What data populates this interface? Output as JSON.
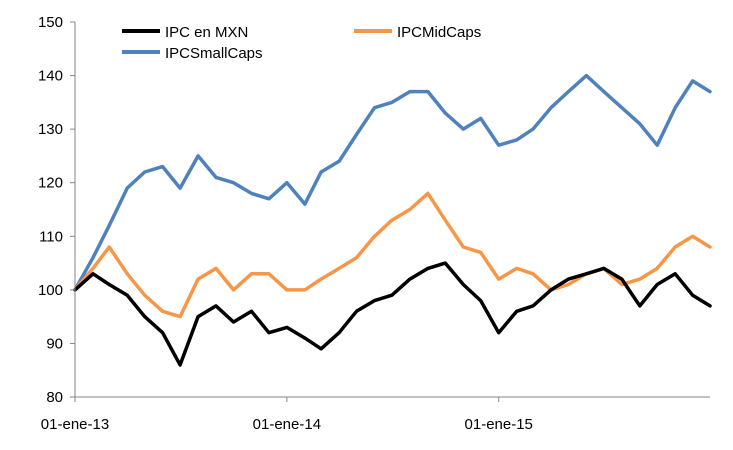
{
  "chart_data": {
    "type": "line",
    "title": "",
    "xlabel": "",
    "ylabel": "",
    "ylim": [
      80,
      150
    ],
    "yticks": [
      "80",
      "90",
      "100",
      "110",
      "120",
      "130",
      "140",
      "150"
    ],
    "xlim": [
      "2013-01-01",
      "2015-12-31"
    ],
    "xticks": [
      {
        "date": "2013-01-01",
        "label": "01-ene-13"
      },
      {
        "date": "2014-01-01",
        "label": "01-ene-14"
      },
      {
        "date": "2015-01-01",
        "label": "01-ene-15"
      }
    ],
    "grid": false,
    "legend": "top",
    "x": [
      "2013-01-01",
      "2013-02-01",
      "2013-03-01",
      "2013-04-01",
      "2013-05-01",
      "2013-06-01",
      "2013-07-01",
      "2013-08-01",
      "2013-09-01",
      "2013-10-01",
      "2013-11-01",
      "2013-12-01",
      "2014-01-01",
      "2014-02-01",
      "2014-03-01",
      "2014-04-01",
      "2014-05-01",
      "2014-06-01",
      "2014-07-01",
      "2014-08-01",
      "2014-09-01",
      "2014-10-01",
      "2014-11-01",
      "2014-12-01",
      "2015-01-01",
      "2015-02-01",
      "2015-03-01",
      "2015-04-01",
      "2015-05-01",
      "2015-06-01",
      "2015-07-01",
      "2015-08-01",
      "2015-09-01",
      "2015-10-01",
      "2015-11-01",
      "2015-12-01",
      "2015-12-31"
    ],
    "series": [
      {
        "name": "IPC en MXN",
        "color": "#000000",
        "values": [
          100,
          103,
          101,
          99,
          95,
          92,
          86,
          95,
          97,
          94,
          96,
          92,
          93,
          91,
          89,
          92,
          96,
          98,
          99,
          102,
          104,
          105,
          101,
          98,
          92,
          96,
          97,
          100,
          102,
          103,
          104,
          102,
          97,
          101,
          103,
          99,
          97
        ]
      },
      {
        "name": "IPCMidCaps",
        "color": "#F79646",
        "values": [
          100,
          104,
          108,
          103,
          99,
          96,
          95,
          102,
          104,
          100,
          103,
          103,
          100,
          100,
          102,
          104,
          106,
          110,
          113,
          115,
          118,
          113,
          108,
          107,
          102,
          104,
          103,
          100,
          101,
          103,
          104,
          101,
          102,
          104,
          108,
          110,
          108
        ]
      },
      {
        "name": "IPCSmallCaps",
        "color": "#4F81BD",
        "values": [
          100,
          106,
          112,
          119,
          122,
          123,
          119,
          125,
          121,
          120,
          118,
          117,
          120,
          116,
          122,
          124,
          129,
          134,
          135,
          137,
          137,
          133,
          130,
          132,
          127,
          128,
          130,
          134,
          137,
          140,
          137,
          134,
          131,
          127,
          134,
          139,
          137
        ]
      }
    ]
  }
}
